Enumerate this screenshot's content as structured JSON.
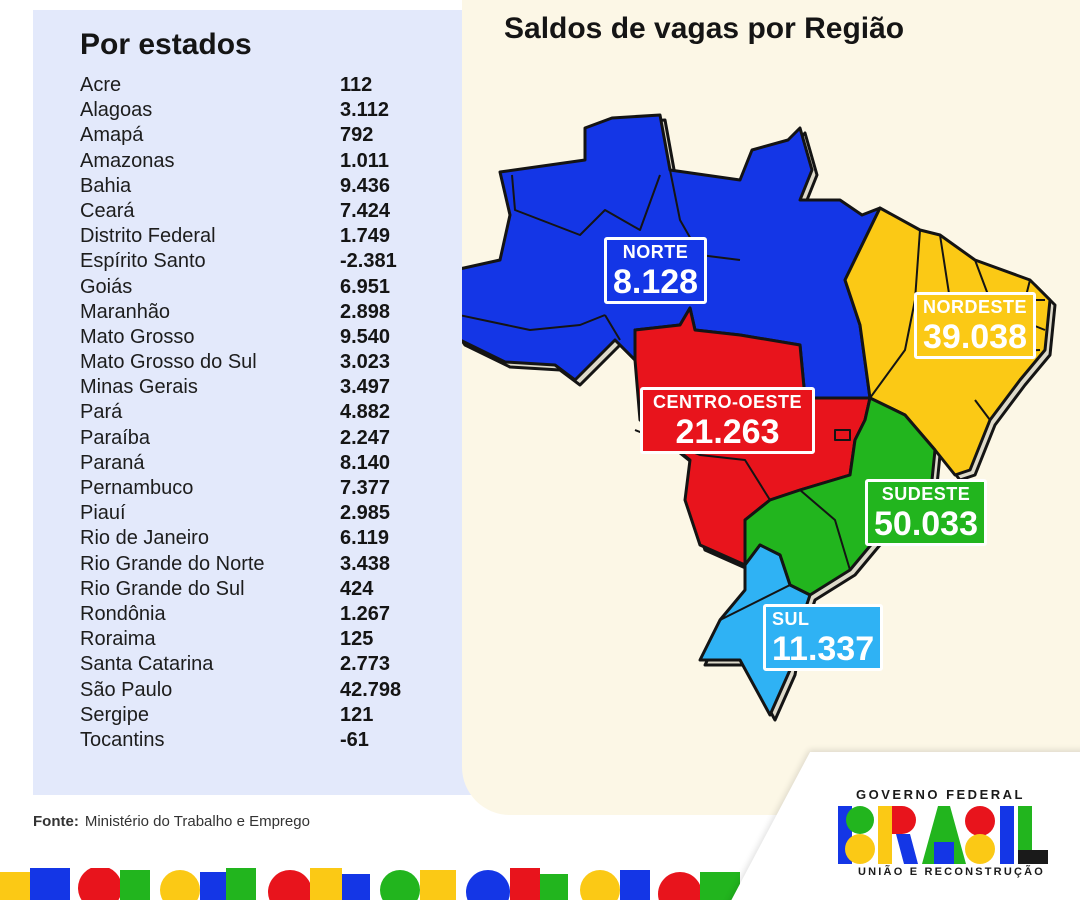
{
  "left_title": "Por estados",
  "states": [
    {
      "name": "Acre",
      "value": "112"
    },
    {
      "name": "Alagoas",
      "value": "3.112"
    },
    {
      "name": "Amapá",
      "value": "792"
    },
    {
      "name": "Amazonas",
      "value": "1.011"
    },
    {
      "name": "Bahia",
      "value": "9.436"
    },
    {
      "name": "Ceará",
      "value": "7.424"
    },
    {
      "name": "Distrito Federal",
      "value": "1.749"
    },
    {
      "name": "Espírito Santo",
      "value": "-2.381"
    },
    {
      "name": "Goiás",
      "value": "6.951"
    },
    {
      "name": "Maranhão",
      "value": "2.898"
    },
    {
      "name": "Mato Grosso",
      "value": "9.540"
    },
    {
      "name": "Mato Grosso do Sul",
      "value": "3.023"
    },
    {
      "name": "Minas Gerais",
      "value": "3.497"
    },
    {
      "name": "Pará",
      "value": "4.882"
    },
    {
      "name": "Paraíba",
      "value": "2.247"
    },
    {
      "name": "Paraná",
      "value": "8.140"
    },
    {
      "name": "Pernambuco",
      "value": "7.377"
    },
    {
      "name": "Piauí",
      "value": "2.985"
    },
    {
      "name": "Rio de Janeiro",
      "value": "6.119"
    },
    {
      "name": "Rio Grande do Norte",
      "value": "3.438"
    },
    {
      "name": "Rio Grande do Sul",
      "value": "424"
    },
    {
      "name": "Rondônia",
      "value": "1.267"
    },
    {
      "name": "Roraima",
      "value": "125"
    },
    {
      "name": "Santa Catarina",
      "value": "2.773"
    },
    {
      "name": "São Paulo",
      "value": "42.798"
    },
    {
      "name": "Sergipe",
      "value": "121"
    },
    {
      "name": "Tocantins",
      "value": "-61"
    }
  ],
  "map_title": "Saldos de vagas por Região",
  "regions": {
    "norte": {
      "name": "NORTE",
      "value": "8.128",
      "color": "#1436e6"
    },
    "nordeste": {
      "name": "NORDESTE",
      "value": "39.038",
      "color": "#fbc915"
    },
    "centro_oeste": {
      "name": "CENTRO-OESTE",
      "value": "21.263",
      "color": "#e8141c"
    },
    "sudeste": {
      "name": "SUDESTE",
      "value": "50.033",
      "color": "#22b51e"
    },
    "sul": {
      "name": "SUL",
      "value": "11.337",
      "color": "#2fb2f4"
    }
  },
  "source": {
    "label": "Fonte:",
    "text": "Ministério do Trabalho e Emprego"
  },
  "logo": {
    "top": "GOVERNO FEDERAL",
    "wordmark": "BRASIL",
    "bottom": "UNIÃO E RECONSTRUÇÃO"
  }
}
